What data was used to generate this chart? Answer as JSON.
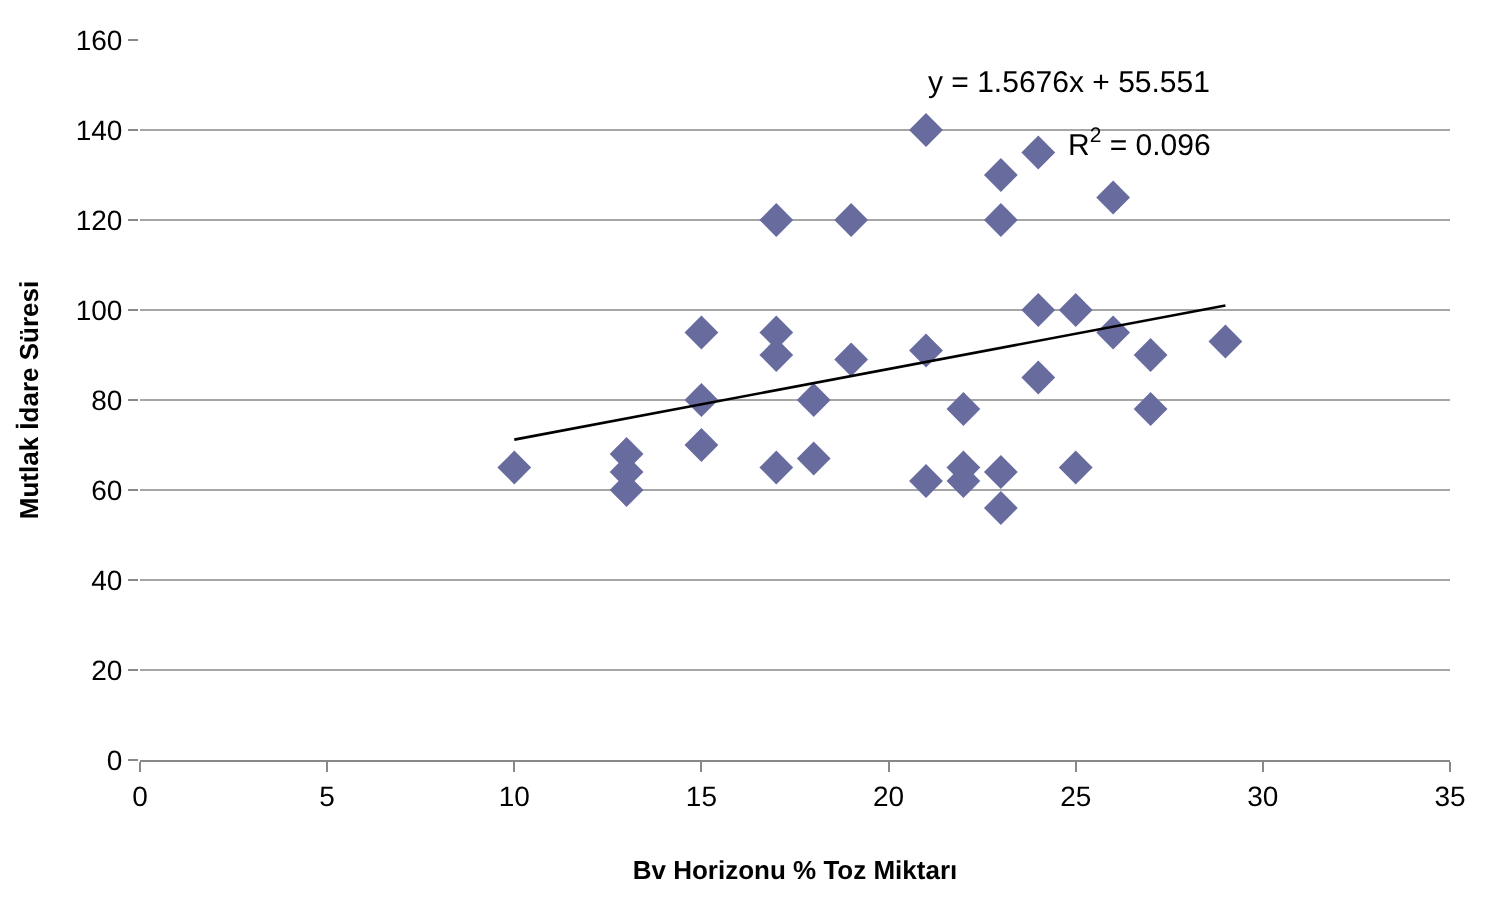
{
  "chart_data": {
    "type": "scatter",
    "xlabel": "Bv Horizonu % Toz Miktarı",
    "ylabel": "Mutlak İdare Süresi",
    "xlim": [
      0,
      35
    ],
    "xticks": [
      0,
      5,
      10,
      15,
      20,
      25,
      30,
      35
    ],
    "ylim": [
      0,
      160
    ],
    "yticks": [
      0,
      20,
      40,
      60,
      80,
      100,
      120,
      140,
      160
    ],
    "grid": "y",
    "marker": "diamond",
    "series": [
      {
        "color": "#686b9e",
        "x": [
          10,
          13,
          13,
          13,
          15,
          15,
          15,
          17,
          17,
          17,
          17,
          18,
          18,
          19,
          19,
          21,
          21,
          21,
          22,
          22,
          22,
          23,
          23,
          23,
          23,
          24,
          24,
          24,
          25,
          25,
          26,
          26,
          27,
          27,
          29
        ],
        "values": [
          65,
          68,
          64,
          60,
          95,
          80,
          70,
          120,
          95,
          90,
          65,
          80,
          67,
          120,
          89,
          140,
          91,
          62,
          78,
          65,
          62,
          130,
          120,
          64,
          56,
          135,
          100,
          85,
          100,
          65,
          125,
          95,
          90,
          78,
          93
        ]
      },
      {
        "type": "line",
        "marker": "none",
        "color": "#000000",
        "x": [
          10,
          29
        ],
        "values": [
          71.2,
          101.0
        ]
      }
    ],
    "annotations": [
      "y = 1.5676x + 55.551",
      "R$^{2}$ = 0.096"
    ]
  }
}
